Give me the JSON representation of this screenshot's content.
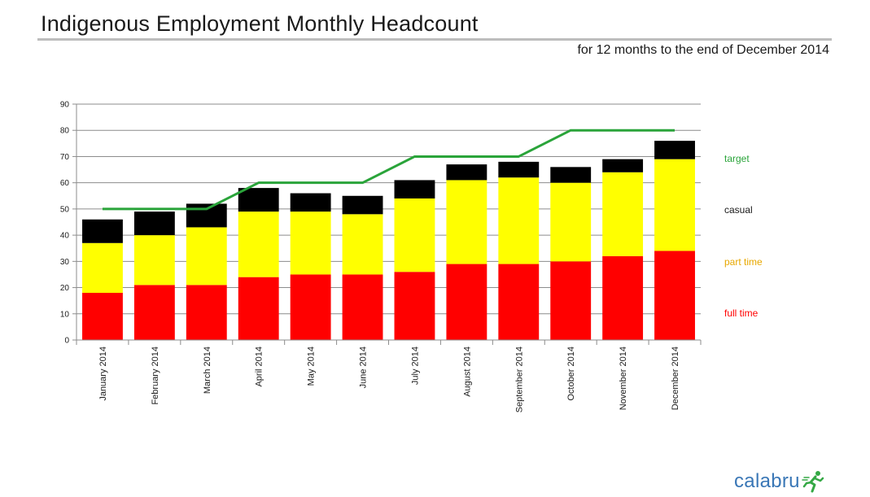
{
  "header": {
    "title": "Indigenous Employment Monthly Headcount",
    "subtitle": "for 12 months to the end of December 2014"
  },
  "logo": {
    "text": "calabru",
    "icon": "running-figure-icon"
  },
  "colors": {
    "full_time": "#ff0000",
    "part_time": "#ffff00",
    "casual": "#000000",
    "target": "#2aa43a",
    "part_time_label": "#e8a800",
    "logo": "#3a77b6"
  },
  "chart_data": {
    "type": "bar",
    "stacked": true,
    "categories": [
      "January 2014",
      "February 2014",
      "March 2014",
      "April 2014",
      "May 2014",
      "June 2014",
      "July 2014",
      "August 2014",
      "September 2014",
      "October 2014",
      "November 2014",
      "December 2014"
    ],
    "series": [
      {
        "name": "full time",
        "values": [
          18,
          21,
          21,
          24,
          25,
          25,
          26,
          29,
          29,
          30,
          32,
          34
        ]
      },
      {
        "name": "part time",
        "values": [
          19,
          19,
          22,
          25,
          24,
          23,
          28,
          32,
          33,
          30,
          32,
          35
        ]
      },
      {
        "name": "casual",
        "values": [
          9,
          9,
          9,
          9,
          7,
          7,
          7,
          6,
          6,
          6,
          5,
          7
        ]
      }
    ],
    "line": {
      "name": "target",
      "values": [
        50,
        50,
        50,
        60,
        60,
        60,
        70,
        70,
        70,
        80,
        80,
        80
      ]
    },
    "ylim": [
      0,
      90
    ],
    "yticks": [
      0,
      10,
      20,
      30,
      40,
      50,
      60,
      70,
      80,
      90
    ],
    "grid": true,
    "legend": "right"
  }
}
